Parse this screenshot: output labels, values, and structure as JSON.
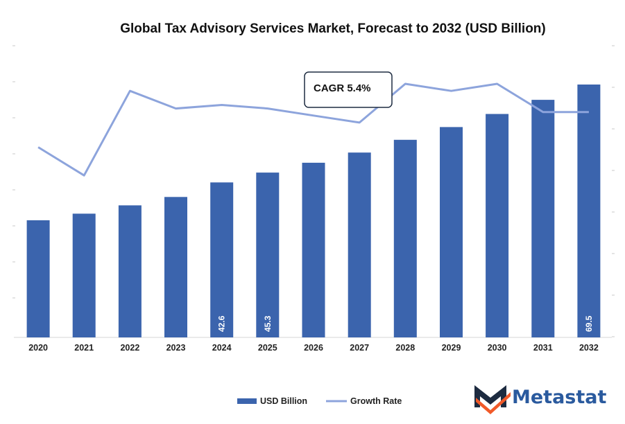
{
  "chart_data": {
    "type": "bar+line",
    "title": "Global Tax Advisory Services Market, Forecast to 2032 (USD Billion)",
    "categories": [
      "2020",
      "2021",
      "2022",
      "2023",
      "2024",
      "2025",
      "2026",
      "2027",
      "2028",
      "2029",
      "2030",
      "2031",
      "2032"
    ],
    "series": [
      {
        "name": "USD Billion",
        "kind": "bar",
        "color": "#3b64ad",
        "values": [
          32.2,
          34.0,
          36.3,
          38.6,
          42.6,
          45.3,
          48.0,
          50.8,
          54.3,
          57.8,
          61.4,
          65.3,
          69.5
        ],
        "data_labels": {
          "4": "42.6",
          "5": "45.3",
          "12": "69.5"
        }
      },
      {
        "name": "Growth Rate",
        "kind": "line",
        "color": "#8da4dc",
        "values": [
          5.4,
          4.6,
          7.0,
          6.5,
          6.6,
          6.5,
          6.3,
          6.1,
          7.2,
          7.0,
          7.2,
          6.4,
          6.4
        ]
      }
    ],
    "ylim": [
      0,
      70
    ],
    "growth_ylim": [
      0,
      8.4
    ],
    "annotation": "CAGR 5.4%",
    "legend": {
      "placement": "bottom-center",
      "entries": [
        "USD Billion",
        "Growth Rate"
      ]
    }
  },
  "branding": {
    "logo_text": "Metastat",
    "logo_color": "#2a5a9e",
    "mark_dark": "#1d2b40",
    "mark_accent": "#f15a29"
  }
}
